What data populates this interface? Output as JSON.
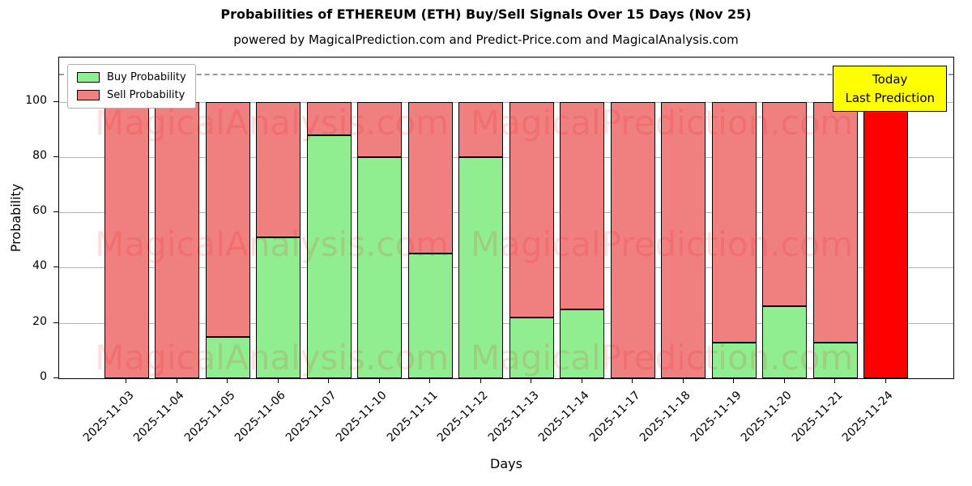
{
  "chart_data": {
    "type": "bar",
    "stacked": true,
    "title": "Probabilities of ETHEREUM (ETH) Buy/Sell Signals Over 15 Days (Nov 25)",
    "subtitle": "powered by MagicalPrediction.com and Predict-Price.com and MagicalAnalysis.com",
    "xlabel": "Days",
    "ylabel": "Probability",
    "ylim": [
      0,
      116
    ],
    "yticks": [
      0,
      20,
      40,
      60,
      80,
      100
    ],
    "dashed_line_y": 110,
    "grid": "horizontal",
    "legend_position": "top-left",
    "categories": [
      "2025-11-03",
      "2025-11-04",
      "2025-11-05",
      "2025-11-06",
      "2025-11-07",
      "2025-11-10",
      "2025-11-11",
      "2025-11-12",
      "2025-11-13",
      "2025-11-14",
      "2025-11-17",
      "2025-11-18",
      "2025-11-19",
      "2025-11-20",
      "2025-11-21",
      "2025-11-24"
    ],
    "series": [
      {
        "name": "Buy Probability",
        "color": "#90EE90",
        "values": [
          0,
          0,
          15,
          51,
          88,
          80,
          45,
          80,
          22,
          25,
          0,
          0,
          13,
          26,
          13,
          0
        ]
      },
      {
        "name": "Sell Probability",
        "color": "#F08080",
        "values": [
          100,
          100,
          85,
          49,
          12,
          20,
          55,
          20,
          78,
          75,
          100,
          100,
          87,
          74,
          87,
          100
        ]
      }
    ],
    "last_bar_color": "#FF0000",
    "annotation": {
      "lines": [
        "Today",
        "Last Prediction"
      ],
      "bg": "#FFFF00",
      "border": "#000000"
    },
    "watermarks": [
      "MagicalAnalysis.com",
      "MagicalPrediction.com"
    ],
    "colors": {
      "grid": "#b3b3b3",
      "bar_edge": "#000000",
      "watermark": "rgba(255,0,0,0.13)"
    }
  }
}
